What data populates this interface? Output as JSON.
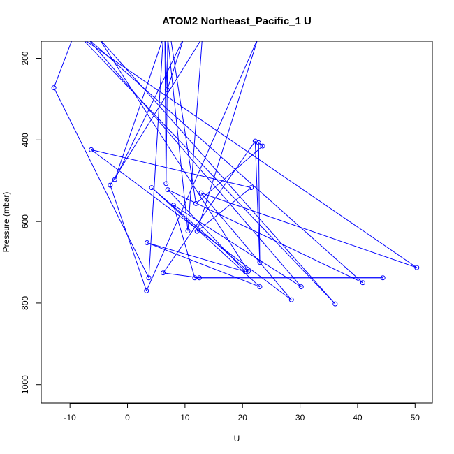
{
  "chart_data": {
    "type": "line",
    "title": "ATOM2 Northeast_Pacific_1 U",
    "xlabel": "U",
    "ylabel": "Pressure (mbar)",
    "xlim": [
      -15,
      53
    ],
    "ylim": [
      1045,
      158
    ],
    "x_ticks": [
      "-10",
      "0",
      "10",
      "20",
      "30",
      "40",
      "50"
    ],
    "y_ticks": [
      "200",
      "400",
      "600",
      "800",
      "1000"
    ],
    "series_color": "#0000ff",
    "markers": "open-circle",
    "series": [
      {
        "points": [
          [
            -9.5,
            150
          ],
          [
            -12.8,
            272
          ],
          [
            3.7,
            738
          ],
          [
            6.2,
            150
          ],
          [
            -2.2,
            497
          ],
          [
            9.8,
            150
          ],
          [
            6.9,
            277
          ],
          [
            6.5,
            150
          ],
          [
            6.7,
            507
          ],
          [
            7.0,
            150
          ],
          [
            10.5,
            623
          ],
          [
            13.0,
            150
          ],
          [
            -3.0,
            511
          ],
          [
            3.3,
            770
          ],
          [
            22.7,
            150
          ],
          [
            12.1,
            624
          ],
          [
            21.5,
            517
          ],
          [
            -6.3,
            424
          ],
          [
            28.5,
            792
          ],
          [
            12.8,
            530
          ],
          [
            50.3,
            713
          ],
          [
            -8.0,
            150
          ],
          [
            36.1,
            802
          ],
          [
            -5.0,
            150
          ],
          [
            21.0,
            722
          ],
          [
            4.2,
            517
          ],
          [
            23.0,
            760
          ],
          [
            3.4,
            652
          ],
          [
            20.5,
            723
          ],
          [
            7.0,
            522
          ],
          [
            40.9,
            750
          ],
          [
            -7.0,
            150
          ],
          [
            30.2,
            760
          ],
          [
            8.0,
            560
          ],
          [
            11.7,
            738
          ],
          [
            44.4,
            738
          ],
          [
            12.5,
            738
          ],
          [
            6.2,
            726
          ],
          [
            22.2,
            403
          ],
          [
            23.0,
            700
          ],
          [
            22.8,
            407
          ],
          [
            23.5,
            415
          ],
          [
            11.9,
            556
          ],
          [
            7.5,
            150
          ]
        ]
      }
    ]
  }
}
